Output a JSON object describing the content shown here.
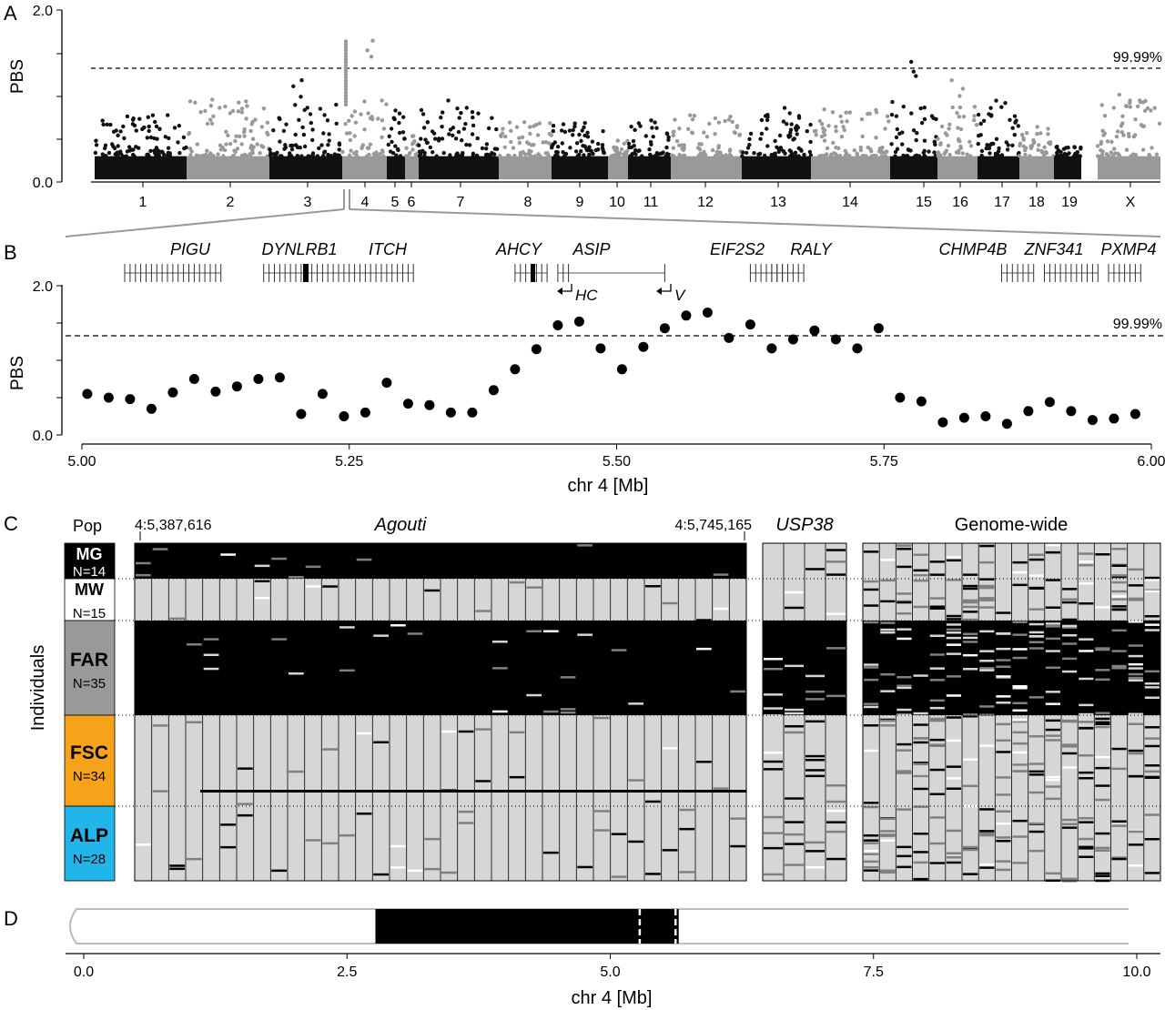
{
  "panel_labels": [
    "A",
    "B",
    "C",
    "D"
  ],
  "chart_data": [
    {
      "panel": "A",
      "type": "scatter",
      "description": "Genome-wide PBS manhattan plot",
      "ylabel": "PBS",
      "ylim": [
        0.0,
        2.0
      ],
      "yticks_labeled": [
        "0.0",
        "2.0"
      ],
      "threshold": {
        "value": 1.33,
        "label": "99.99%"
      },
      "chromosomes": [
        "1",
        "2",
        "3",
        "4",
        "5",
        "6",
        "7",
        "8",
        "9",
        "10",
        "11",
        "12",
        "13",
        "14",
        "15",
        "16",
        "17",
        "18",
        "19",
        "X"
      ],
      "chromosome_colors": [
        "#111111",
        "#999999"
      ],
      "chromosome_peaks": [
        0.78,
        1.0,
        1.2,
        1.65,
        0.85,
        0.55,
        0.95,
        0.72,
        0.72,
        0.5,
        0.72,
        0.78,
        0.88,
        0.85,
        1.4,
        1.2,
        0.95,
        0.65,
        0.45,
        1.05
      ]
    },
    {
      "panel": "B",
      "type": "scatter",
      "xlabel": "chr 4 [Mb]",
      "ylabel": "PBS",
      "xlim": [
        5.0,
        6.0
      ],
      "ylim": [
        0.0,
        2.0
      ],
      "xticks": [
        "5.00",
        "5.25",
        "5.50",
        "5.75",
        "6.00"
      ],
      "yticks": [
        "0.0",
        "2.0"
      ],
      "threshold": {
        "value": 1.33,
        "label": "99.99%"
      },
      "points": [
        [
          5.005,
          0.55
        ],
        [
          5.025,
          0.5
        ],
        [
          5.045,
          0.48
        ],
        [
          5.065,
          0.35
        ],
        [
          5.085,
          0.57
        ],
        [
          5.105,
          0.75
        ],
        [
          5.125,
          0.58
        ],
        [
          5.145,
          0.65
        ],
        [
          5.165,
          0.75
        ],
        [
          5.185,
          0.77
        ],
        [
          5.205,
          0.28
        ],
        [
          5.225,
          0.55
        ],
        [
          5.245,
          0.25
        ],
        [
          5.265,
          0.3
        ],
        [
          5.285,
          0.7
        ],
        [
          5.305,
          0.42
        ],
        [
          5.325,
          0.4
        ],
        [
          5.345,
          0.3
        ],
        [
          5.365,
          0.3
        ],
        [
          5.385,
          0.6
        ],
        [
          5.405,
          0.88
        ],
        [
          5.425,
          1.15
        ],
        [
          5.445,
          1.47
        ],
        [
          5.465,
          1.52
        ],
        [
          5.485,
          1.16
        ],
        [
          5.505,
          0.88
        ],
        [
          5.525,
          1.18
        ],
        [
          5.545,
          1.43
        ],
        [
          5.565,
          1.6
        ],
        [
          5.585,
          1.64
        ],
        [
          5.605,
          1.3
        ],
        [
          5.625,
          1.48
        ],
        [
          5.645,
          1.16
        ],
        [
          5.665,
          1.28
        ],
        [
          5.685,
          1.4
        ],
        [
          5.705,
          1.28
        ],
        [
          5.725,
          1.16
        ],
        [
          5.745,
          1.43
        ],
        [
          5.765,
          0.5
        ],
        [
          5.785,
          0.45
        ],
        [
          5.805,
          0.17
        ],
        [
          5.825,
          0.23
        ],
        [
          5.845,
          0.25
        ],
        [
          5.865,
          0.15
        ],
        [
          5.885,
          0.32
        ],
        [
          5.905,
          0.44
        ],
        [
          5.925,
          0.32
        ],
        [
          5.945,
          0.2
        ],
        [
          5.965,
          0.22
        ],
        [
          5.985,
          0.28
        ]
      ],
      "genes": [
        {
          "name": "PIGU",
          "start": 5.04,
          "end": 5.13
        },
        {
          "name": "DYNLRB1",
          "start": 5.17,
          "end": 5.22
        },
        {
          "name": "ITCH",
          "start": 5.22,
          "end": 5.31
        },
        {
          "name": "AHCY",
          "start": 5.405,
          "end": 5.435
        },
        {
          "name": "ASIP",
          "start": 5.445,
          "end": 5.545
        },
        {
          "name": "EIF2S2",
          "start": 5.625,
          "end": 5.66
        },
        {
          "name": "RALY",
          "start": 5.645,
          "end": 5.675
        },
        {
          "name": "CHMP4B",
          "start": 5.86,
          "end": 5.89
        },
        {
          "name": "ZNF341",
          "start": 5.9,
          "end": 5.95
        },
        {
          "name": "PXMP4",
          "start": 5.96,
          "end": 5.99
        }
      ],
      "promoters": [
        "HC",
        "V"
      ]
    }
  ],
  "panel_c": {
    "pop_header": "Pop",
    "agouti_title": "Agouti",
    "usp38_title": "USP38",
    "genome_title": "Genome-wide",
    "coord_start": "4:5,387,616",
    "coord_end": "4:5,745,165",
    "ylabel": "Individuals",
    "populations": [
      {
        "name": "MG",
        "n": "N=14",
        "color": "#000000",
        "text_color": "#ffffff"
      },
      {
        "name": "MW",
        "n": "N=15",
        "color": "#ffffff",
        "text_color": "#000000"
      },
      {
        "name": "FAR",
        "n": "N=35",
        "color": "#999999",
        "text_color": "#000000"
      },
      {
        "name": "FSC",
        "n": "N=34",
        "color": "#f7a21b",
        "text_color": "#000000"
      },
      {
        "name": "ALP",
        "n": "N=28",
        "color": "#22b5ea",
        "text_color": "#000000"
      }
    ],
    "legend_colors": {
      "ancestral": "#d6d6d6",
      "derived": "#000000",
      "het": "#808080",
      "missing": "#ffffff"
    }
  },
  "panel_d": {
    "xlabel": "chr 4 [Mb]",
    "xticks": [
      "0.0",
      "2.5",
      "5.0",
      "7.5",
      "10.0"
    ],
    "xlim": [
      0,
      10
    ],
    "block_start": 2.77,
    "block_end": 5.65,
    "dashes": [
      5.28,
      5.62
    ]
  }
}
